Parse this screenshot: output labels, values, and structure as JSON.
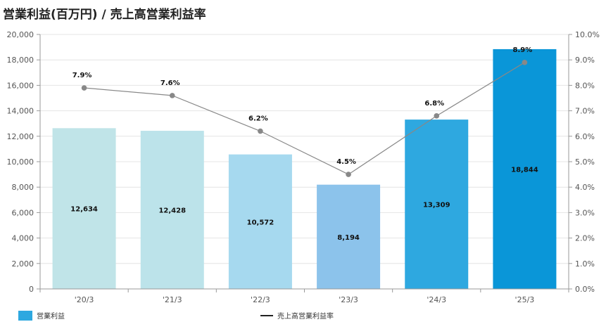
{
  "title": "営業利益(百万円) / 売上高営業利益率",
  "legend": {
    "bar_label": "営業利益",
    "line_label": "売上高営業利益率"
  },
  "chart_data": {
    "type": "bar",
    "title": "営業利益(百万円) / 売上高営業利益率",
    "categories": [
      "'20/3",
      "'21/3",
      "'22/3",
      "'23/3",
      "'24/3",
      "'25/3"
    ],
    "series": [
      {
        "name": "営業利益",
        "type": "bar",
        "axis": "left",
        "values": [
          12634,
          12428,
          10572,
          8194,
          13309,
          18844
        ],
        "labels": [
          "12,634",
          "12,428",
          "10,572",
          "8,194",
          "13,309",
          "18,844"
        ],
        "colors": [
          "#c0e4e8",
          "#bce3ea",
          "#a6d9ef",
          "#8cc3eb",
          "#2ea8e0",
          "#0a96d8"
        ]
      },
      {
        "name": "売上高営業利益率",
        "type": "line",
        "axis": "right",
        "values": [
          7.9,
          7.6,
          6.2,
          4.5,
          6.8,
          8.9
        ],
        "labels": [
          "7.9%",
          "7.6%",
          "6.2%",
          "4.5%",
          "6.8%",
          "8.9%"
        ],
        "color": "#888888"
      }
    ],
    "y_left": {
      "range": [
        0,
        20000
      ],
      "ticks": [
        "0",
        "2,000",
        "4,000",
        "6,000",
        "8,000",
        "10,000",
        "12,000",
        "14,000",
        "16,000",
        "18,000",
        "20,000"
      ]
    },
    "y_right": {
      "range": [
        0,
        10
      ],
      "ticks": [
        "0.0%",
        "1.0%",
        "2.0%",
        "3.0%",
        "4.0%",
        "5.0%",
        "6.0%",
        "7.0%",
        "8.0%",
        "9.0%",
        "10.0%"
      ]
    },
    "grid": true,
    "legend_position": "bottom-left"
  }
}
